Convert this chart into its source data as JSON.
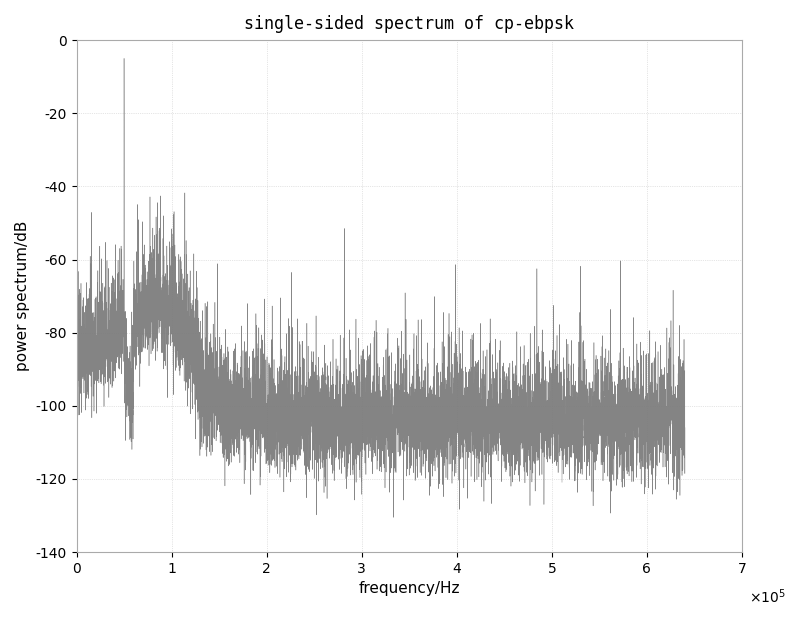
{
  "title": "single-sided spectrum of cp-ebpsk",
  "xlabel": "frequency/Hz",
  "ylabel": "power spectrum/dB",
  "xlim": [
    0,
    700000.0
  ],
  "ylim": [
    -140,
    0
  ],
  "yticks": [
    0,
    -20,
    -40,
    -60,
    -80,
    -100,
    -120,
    -140
  ],
  "xticks": [
    0,
    100000.0,
    200000.0,
    300000.0,
    400000.0,
    500000.0,
    600000.0,
    700000.0
  ],
  "xtick_labels": [
    "0",
    "1",
    "2",
    "3",
    "4",
    "5",
    "6",
    "7"
  ],
  "xscale_label": "x 10^5",
  "line_color": "#777777",
  "background_color": "#ffffff",
  "grid_color": "#cccccc",
  "carrier_freq": 50000,
  "sample_rate": 1280000,
  "noise_floor": -110,
  "signal_peak": -5,
  "second_peak_freq": 85000,
  "second_peak_val": -72,
  "title_fontsize": 12,
  "label_fontsize": 11,
  "tick_fontsize": 10
}
